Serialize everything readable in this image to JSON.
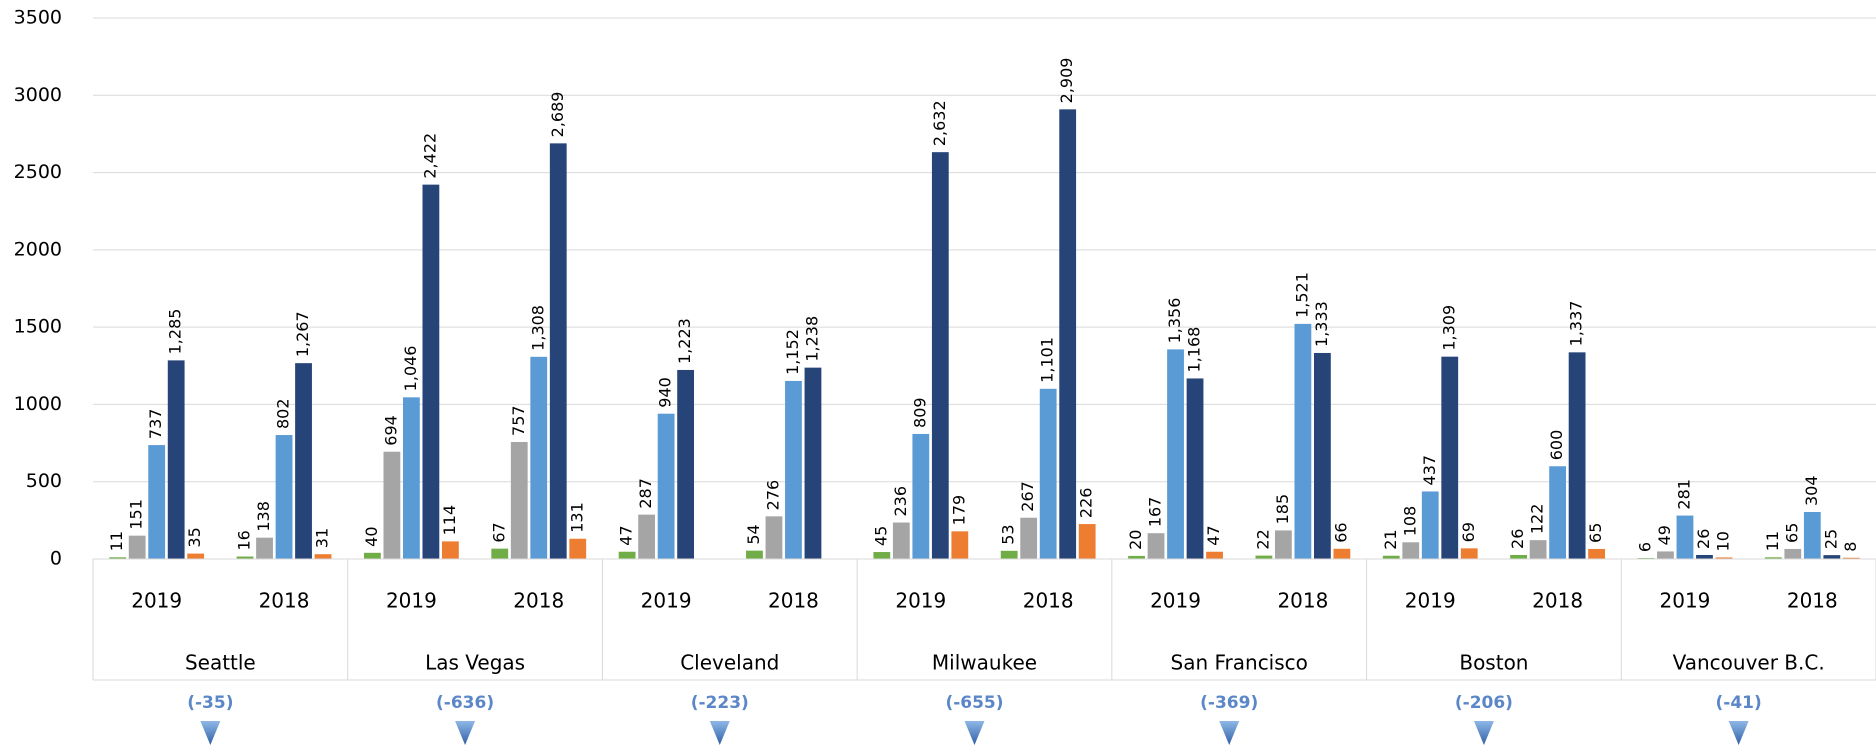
{
  "chart_data": {
    "type": "bar",
    "categories": [
      "2019",
      "2018",
      "2019",
      "2018",
      "2019",
      "2018",
      "2019",
      "2018",
      "2019",
      "2018",
      "2019",
      "2018",
      "2019",
      "2018"
    ],
    "category_groups": [
      "Seattle",
      "Las Vegas",
      "Cleveland",
      "Milwaukee",
      "San Francisco",
      "Boston",
      "Vancouver B.C."
    ],
    "annotations": [
      "(-35)",
      "(-636)",
      "(-223)",
      "(-655)",
      "(-369)",
      "(-206)",
      "(-41)"
    ],
    "series": [
      {
        "color": "#70ad47",
        "values": [
          11,
          16,
          40,
          67,
          47,
          54,
          45,
          53,
          20,
          22,
          21,
          26,
          6,
          11
        ]
      },
      {
        "color": "#a5a5a5",
        "values": [
          151,
          138,
          694,
          757,
          287,
          276,
          236,
          267,
          167,
          185,
          108,
          122,
          49,
          65
        ]
      },
      {
        "color": "#5b9bd5",
        "values": [
          737,
          802,
          1046,
          1308,
          940,
          1152,
          809,
          1101,
          1356,
          1521,
          437,
          600,
          281,
          304
        ],
        "value_labels": [
          "737",
          "802",
          "1,046",
          "1,308",
          "940",
          "1,152",
          "809",
          "1,101",
          "1,356",
          "1,521",
          "437",
          "600",
          "281",
          "304"
        ]
      },
      {
        "color": "#264478",
        "values": [
          1285,
          1267,
          2422,
          2689,
          1223,
          1238,
          2632,
          2909,
          1168,
          1333,
          1309,
          1337,
          26,
          25
        ],
        "value_labels": [
          "1,285",
          "1,267",
          "2,422",
          "2,689",
          "1,223",
          "1,238",
          "2,632",
          "2,909",
          "1,168",
          "1,333",
          "1,309",
          "1,337",
          "26",
          "25"
        ]
      },
      {
        "color": "#ed7d31",
        "values": [
          35,
          31,
          114,
          131,
          null,
          null,
          179,
          226,
          47,
          66,
          69,
          65,
          10,
          8
        ]
      }
    ],
    "ylim": [
      0,
      3500
    ],
    "yticks": [
      0,
      500,
      1000,
      1500,
      2000,
      2500,
      3000,
      3500
    ],
    "grid": true
  }
}
